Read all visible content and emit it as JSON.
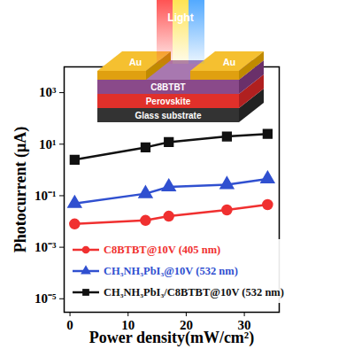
{
  "chart_data": {
    "type": "line",
    "y_label": "Photocurrent (μA)",
    "x_label": "Power density(mW/cm²)",
    "log": "y",
    "grid": false,
    "legend": "bottom",
    "xlim": [
      -1,
      36
    ],
    "xticks": [
      0,
      10,
      20,
      30
    ],
    "ylim": [
      3e-06,
      10000
    ],
    "yticks": [
      {
        "value": 1e-05,
        "label": "10⁻⁵"
      },
      {
        "value": 0.001,
        "label": "10⁻³"
      },
      {
        "value": 0.1,
        "label": "10⁻¹"
      },
      {
        "value": 10,
        "label": "10¹"
      },
      {
        "value": 1000,
        "label": "10³"
      }
    ],
    "x": [
      0.8,
      13,
      17,
      27,
      34
    ],
    "series": [
      {
        "name": "C8BTBT@10V (405 nm)",
        "color": "#f03030",
        "marker": "circle",
        "values": [
          0.008,
          0.011,
          0.016,
          0.028,
          0.045
        ]
      },
      {
        "name": "CH₃NH₃PbI₃@10V (532 nm)",
        "color": "#3050d0",
        "marker": "triangle",
        "values": [
          0.05,
          0.12,
          0.22,
          0.27,
          0.45
        ]
      },
      {
        "name": "CH₃NH₃PbI₃/C8BTBT@10V (532 nm)",
        "color": "#111111",
        "marker": "square",
        "values": [
          2.5,
          7.5,
          12,
          20,
          25
        ]
      }
    ],
    "annotations": [
      "Light",
      "Au",
      "Au",
      "C8BTBT",
      "Perovskite",
      "Glass substrate"
    ]
  }
}
